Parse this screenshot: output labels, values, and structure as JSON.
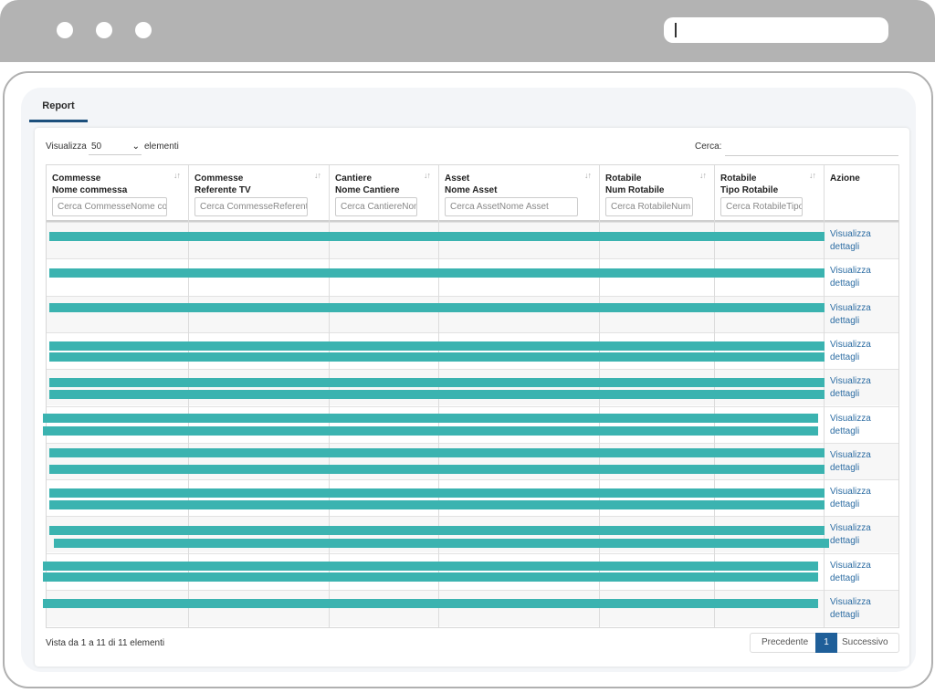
{
  "browser": {
    "address_value": ""
  },
  "tabs": [
    {
      "label": "Report",
      "active": true
    }
  ],
  "controls": {
    "show_label": "Visualizza",
    "page_size": "50",
    "entries_label": "elementi",
    "search_label": "Cerca:",
    "search_value": ""
  },
  "table": {
    "columns": [
      {
        "line1": "Commesse",
        "line2": "Nome commessa",
        "filter_placeholder": "Cerca CommesseNome commessa"
      },
      {
        "line1": "Commesse",
        "line2": "Referente TV",
        "filter_placeholder": "Cerca CommesseReferente TV"
      },
      {
        "line1": "Cantiere",
        "line2": "Nome Cantiere",
        "filter_placeholder": "Cerca CantiereNome Cantiere"
      },
      {
        "line1": "Asset",
        "line2": "Nome Asset",
        "filter_placeholder": "Cerca AssetNome Asset"
      },
      {
        "line1": "Rotabile",
        "line2": "Num Rotabile",
        "filter_placeholder": "Cerca RotabileNum Rotabile"
      },
      {
        "line1": "Rotabile",
        "line2": "Tipo Rotabile",
        "filter_placeholder": "Cerca RotabileTipo Rotabile"
      },
      {
        "line1": "Azione",
        "line2": "",
        "filter_placeholder": ""
      }
    ],
    "rows": [
      {
        "action": "Visualizza dettagli"
      },
      {
        "action": "Visualizza dettagli"
      },
      {
        "action": "Visualizza dettagli"
      },
      {
        "action": "Visualizza dettagli"
      },
      {
        "action": "Visualizza dettagli"
      },
      {
        "action": "Visualizza dettagli"
      },
      {
        "action": "Visualizza dettagli"
      },
      {
        "action": "Visualizza dettagli"
      },
      {
        "action": "Visualizza dettagli"
      },
      {
        "action": "Visualizza dettagli"
      },
      {
        "action": "Visualizza dettagli"
      }
    ],
    "redaction_color": "#3bb3b0"
  },
  "footer": {
    "info": "Vista da 1 a 11 di 11 elementi",
    "prev_label": "Precedente",
    "current_page": "1",
    "next_label": "Successivo",
    "accent_color": "#1f5f99"
  }
}
